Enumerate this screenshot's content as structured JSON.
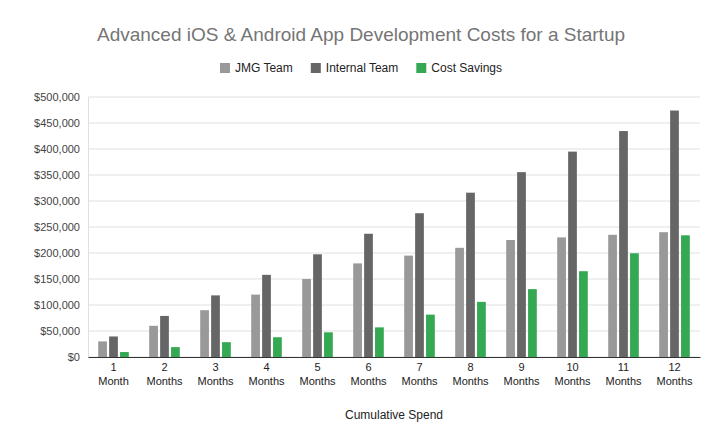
{
  "chart_data": {
    "type": "bar",
    "title": "Advanced iOS & Android App Development Costs for a Startup",
    "x_label": "Cumulative Spend",
    "categories": [
      "1 Month",
      "2 Months",
      "3 Months",
      "4 Months",
      "5 Months",
      "6 Months",
      "7 Months",
      "8 Months",
      "9 Months",
      "10 Months",
      "11 Months",
      "12 Months"
    ],
    "series": [
      {
        "name": "JMG Team",
        "color": "#999999",
        "values": [
          30000,
          60000,
          90000,
          120000,
          150000,
          180000,
          195000,
          210000,
          225000,
          230000,
          235000,
          240000
        ]
      },
      {
        "name": "Internal Team",
        "color": "#666666",
        "values": [
          39500,
          79000,
          118500,
          158000,
          197500,
          237000,
          276500,
          316000,
          355500,
          395000,
          434500,
          474000
        ]
      },
      {
        "name": "Cost Savings",
        "color": "#34a853",
        "values": [
          9500,
          19000,
          28500,
          38000,
          47500,
          57000,
          81500,
          106000,
          130500,
          165000,
          199500,
          234000
        ]
      }
    ],
    "ylim": [
      0,
      500000
    ],
    "yticks": [
      {
        "value": 0,
        "label": "$0"
      },
      {
        "value": 50000,
        "label": "$50,000"
      },
      {
        "value": 100000,
        "label": "$100,000"
      },
      {
        "value": 150000,
        "label": "$150,000"
      },
      {
        "value": 200000,
        "label": "$200,000"
      },
      {
        "value": 250000,
        "label": "$250,000"
      },
      {
        "value": 300000,
        "label": "$300,000"
      },
      {
        "value": 350000,
        "label": "$350,000"
      },
      {
        "value": 400000,
        "label": "$400,000"
      },
      {
        "value": 450000,
        "label": "$450,000"
      },
      {
        "value": 500000,
        "label": "$500,000"
      }
    ],
    "grid": true,
    "legend": "top"
  }
}
